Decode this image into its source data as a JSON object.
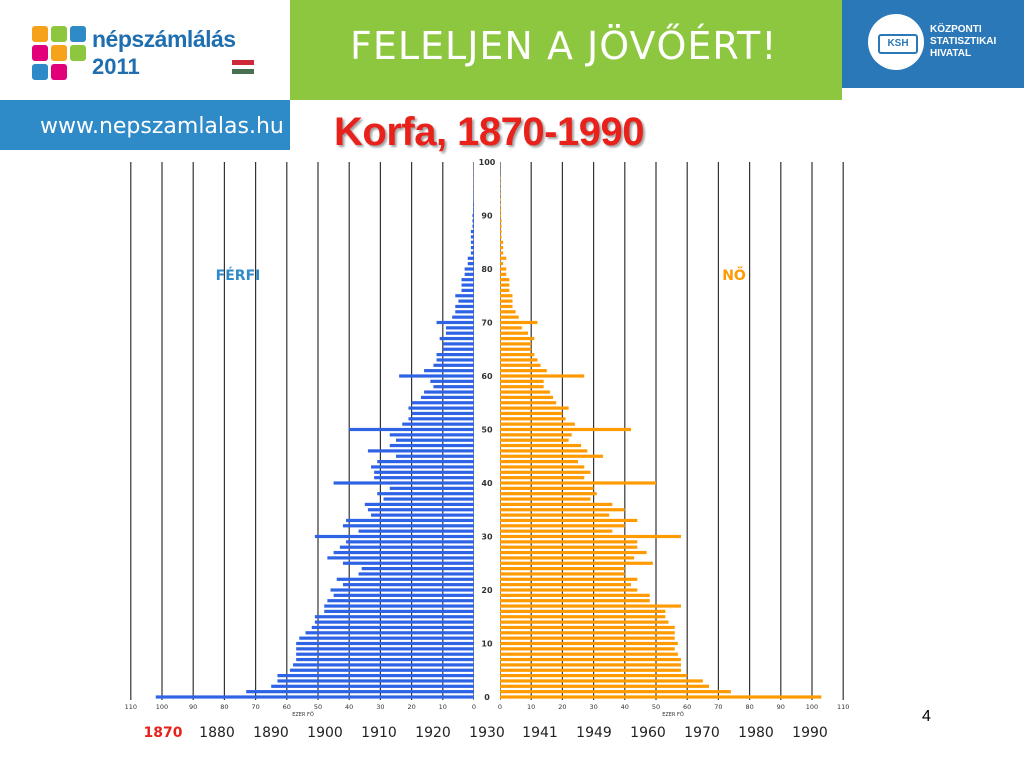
{
  "header": {
    "logo_name": "népszámlálás",
    "logo_year": "2011",
    "slogan": "FELELJEN A JÖVŐÉRT!",
    "url": "www.nepszamlalas.hu",
    "ksh_abbr": "KSH",
    "ksh_lines": [
      "KÖZPONTI",
      "STATISZTIKAI",
      "HIVATAL"
    ]
  },
  "colors": {
    "male": "#2f63e6",
    "female": "#ff9a00",
    "title": "#e8211b",
    "green_bar": "#8dc63f",
    "blue_bar": "#2b78b8",
    "year_active": "#e8211b"
  },
  "page_number": "4",
  "chart_data": {
    "type": "bar",
    "orientation": "horizontal",
    "title": "Korfa, 1870-1990",
    "left_label": "FÉRFI",
    "right_label": "NŐ",
    "xlabel": "EZER FŐ",
    "x_ticks": [
      110,
      100,
      90,
      80,
      70,
      60,
      50,
      40,
      30,
      20,
      10,
      0
    ],
    "x_ticks_right": [
      0,
      10,
      20,
      30,
      40,
      50,
      60,
      70,
      80,
      90,
      100,
      110
    ],
    "xlim": [
      0,
      110
    ],
    "y_ticks": [
      0,
      10,
      20,
      30,
      40,
      50,
      60,
      70,
      80,
      90,
      100
    ],
    "ylim": [
      0,
      100
    ],
    "grid": true,
    "years": [
      "1870",
      "1880",
      "1890",
      "1900",
      "1910",
      "1920",
      "1930",
      "1941",
      "1949",
      "1960",
      "1970",
      "1980",
      "1990"
    ],
    "active_year": "1870",
    "ages": [
      0,
      1,
      2,
      3,
      4,
      5,
      6,
      7,
      8,
      9,
      10,
      11,
      12,
      13,
      14,
      15,
      16,
      17,
      18,
      19,
      20,
      21,
      22,
      23,
      24,
      25,
      26,
      27,
      28,
      29,
      30,
      31,
      32,
      33,
      34,
      35,
      36,
      37,
      38,
      39,
      40,
      41,
      42,
      43,
      44,
      45,
      46,
      47,
      48,
      49,
      50,
      51,
      52,
      53,
      54,
      55,
      56,
      57,
      58,
      59,
      60,
      61,
      62,
      63,
      64,
      65,
      66,
      67,
      68,
      69,
      70,
      71,
      72,
      73,
      74,
      75,
      76,
      77,
      78,
      79,
      80,
      81,
      82,
      83,
      84,
      85,
      86,
      87,
      88,
      89,
      90,
      91,
      92,
      93,
      94,
      95,
      96,
      97,
      98,
      99,
      100
    ],
    "series": [
      {
        "name": "FÉRFI",
        "values": [
          102,
          73,
          65,
          63,
          63,
          59,
          58,
          57,
          57,
          57,
          57,
          56,
          54,
          52,
          51,
          51,
          48,
          48,
          47,
          45,
          46,
          42,
          44,
          37,
          36,
          42,
          47,
          45,
          43,
          41,
          51,
          37,
          42,
          41,
          33,
          34,
          35,
          29,
          31,
          27,
          45,
          32,
          32,
          33,
          31,
          25,
          34,
          27,
          25,
          27,
          40,
          23,
          21,
          20,
          21,
          20,
          17,
          16,
          13,
          14,
          24,
          16,
          13,
          12,
          12,
          10,
          10,
          11,
          9,
          9,
          12,
          7,
          6,
          6,
          5,
          6,
          4,
          4,
          4,
          3,
          3,
          2,
          2,
          1,
          1,
          1,
          1,
          1,
          0.5,
          0.5,
          0.5,
          0.3,
          0.3,
          0.2,
          0.2,
          0.1,
          0.1,
          0.1,
          0.1,
          0,
          0
        ]
      },
      {
        "name": "NŐ",
        "values": [
          103,
          74,
          67,
          65,
          60,
          58,
          58,
          58,
          57,
          56,
          57,
          56,
          56,
          56,
          54,
          53,
          53,
          58,
          48,
          48,
          44,
          42,
          44,
          40,
          40,
          49,
          43,
          47,
          44,
          44,
          58,
          36,
          40,
          44,
          35,
          40,
          36,
          29,
          31,
          30,
          50,
          27,
          29,
          27,
          25,
          33,
          28,
          26,
          22,
          23,
          42,
          24,
          21,
          20,
          22,
          18,
          17,
          16,
          14,
          14,
          27,
          15,
          13,
          12,
          11,
          10,
          10,
          11,
          9,
          7,
          12,
          6,
          5,
          4,
          4,
          4,
          3,
          3,
          3,
          2,
          2,
          1,
          2,
          1,
          1,
          1,
          0.5,
          0.5,
          0.5,
          0.5,
          0.3,
          0.3,
          0.2,
          0.2,
          0.1,
          0.1,
          0.1,
          0.1,
          0,
          0,
          0
        ]
      }
    ]
  }
}
